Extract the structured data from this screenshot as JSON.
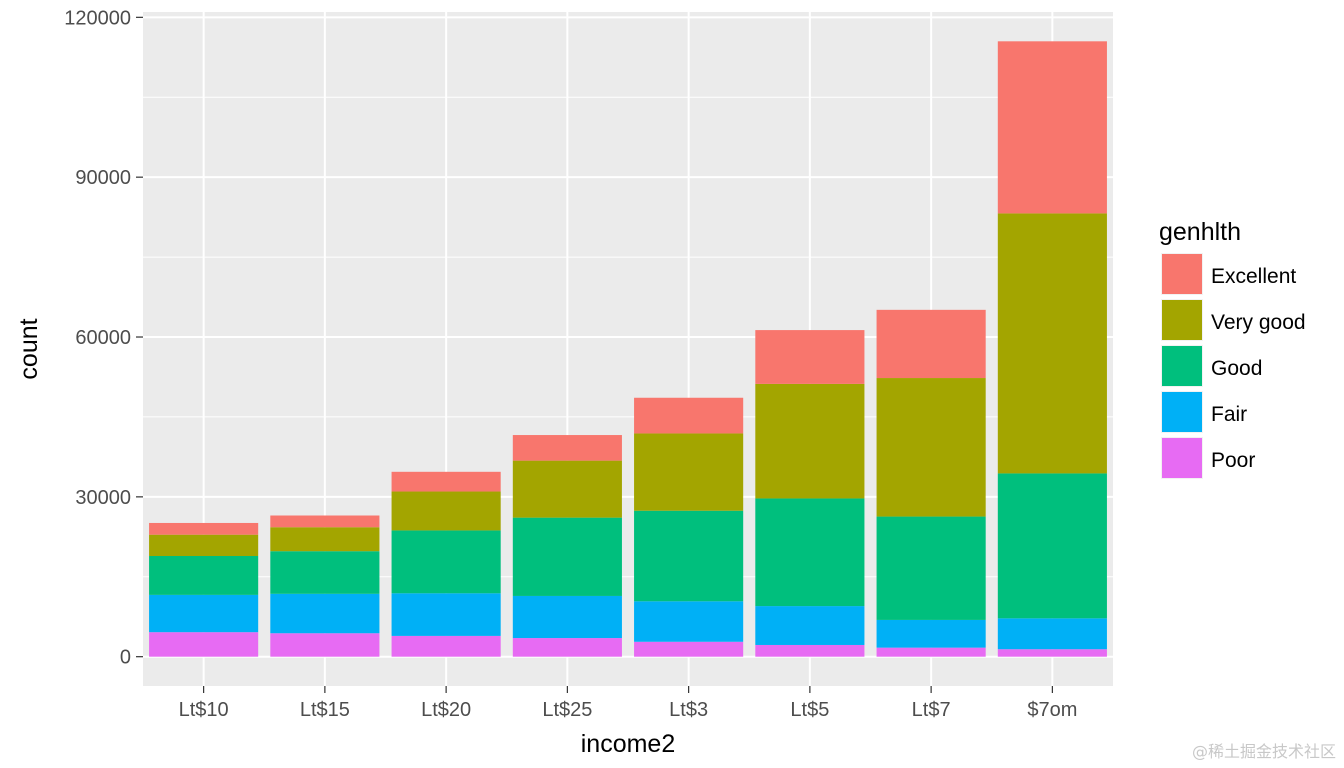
{
  "chart_data": {
    "type": "bar",
    "stacked": true,
    "xlabel": "income2",
    "ylabel": "count",
    "ylim": [
      -5500,
      121000
    ],
    "yticks": [
      0,
      30000,
      60000,
      90000,
      120000
    ],
    "ytick_labels": [
      "0",
      "30000",
      "60000",
      "90000",
      "120000"
    ],
    "categories": [
      "Lt$10",
      "Lt$15",
      "Lt$20",
      "Lt$25",
      "Lt$3",
      "Lt$5",
      "Lt$7",
      "$7om"
    ],
    "legend": {
      "title": "genhlth",
      "position": "right"
    },
    "series": [
      {
        "name": "Poor",
        "color": "#E76BF3",
        "values": [
          4600,
          4400,
          3900,
          3500,
          2800,
          2200,
          1700,
          1400
        ]
      },
      {
        "name": "Fair",
        "color": "#00B0F6",
        "values": [
          7000,
          7400,
          8000,
          7900,
          7600,
          7300,
          5200,
          5800
        ]
      },
      {
        "name": "Good",
        "color": "#00BF7D",
        "values": [
          7300,
          8000,
          11800,
          14700,
          17000,
          20200,
          19400,
          27200
        ]
      },
      {
        "name": "Very good",
        "color": "#A3A500",
        "values": [
          4000,
          4500,
          7300,
          10700,
          14500,
          21500,
          26000,
          48800
        ]
      },
      {
        "name": "Excellent",
        "color": "#F8766D",
        "values": [
          2200,
          2200,
          3700,
          4800,
          6700,
          10100,
          12800,
          32300
        ]
      }
    ],
    "legend_order": [
      "Excellent",
      "Very good",
      "Good",
      "Fair",
      "Poor"
    ],
    "grid": true,
    "panel_background": "#EBEBEB"
  },
  "watermark": "@稀土掘金技术社区"
}
